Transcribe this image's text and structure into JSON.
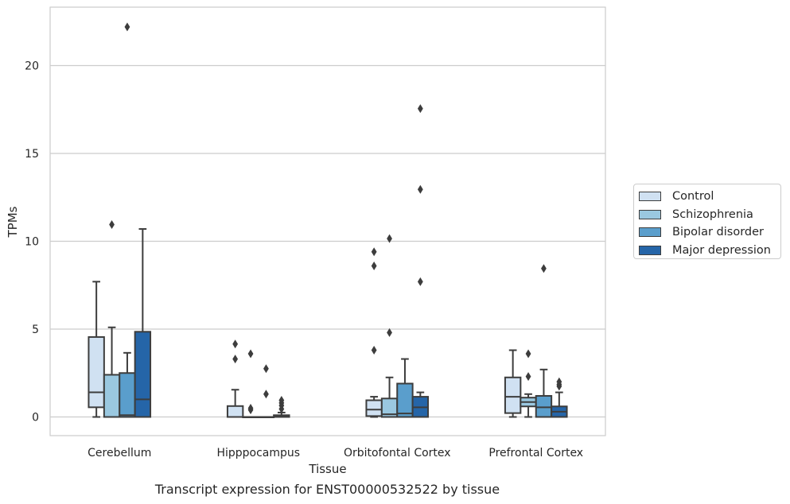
{
  "chart_data": {
    "type": "boxplot",
    "title": "",
    "caption": "Transcript expression for ENST00000532522 by tissue",
    "xlabel": "Tissue",
    "ylabel": "TPMs",
    "ylim": [
      -1.1,
      23.2
    ],
    "yticks": [
      0,
      5,
      10,
      15,
      20
    ],
    "ytick_labels": [
      "0",
      "5",
      "10",
      "15",
      "20"
    ],
    "grid": "horizontal",
    "legend_position": "right",
    "categories": [
      "Cerebellum",
      "Hipppocampus",
      "Orbitofontal Cortex",
      "Prefrontal Cortex"
    ],
    "series": [
      {
        "name": "Control",
        "color": "#d0e1f2",
        "boxes": [
          {
            "q1": 0.55,
            "median": 1.4,
            "q3": 4.55,
            "whislo": 0.0,
            "whishi": 7.7,
            "fliers": []
          },
          {
            "q1": 0.0,
            "median": 0.0,
            "q3": 0.62,
            "whislo": 0.0,
            "whishi": 1.55,
            "fliers": [
              3.3,
              4.15
            ]
          },
          {
            "q1": 0.05,
            "median": 0.42,
            "q3": 0.95,
            "whislo": 0.0,
            "whishi": 1.15,
            "fliers": [
              3.8,
              8.6,
              9.4
            ]
          },
          {
            "q1": 0.22,
            "median": 1.15,
            "q3": 2.25,
            "whislo": 0.0,
            "whishi": 3.8,
            "fliers": []
          }
        ]
      },
      {
        "name": "Schizophrenia",
        "color": "#9ac8e0",
        "boxes": [
          {
            "q1": 0.0,
            "median": 0.0,
            "q3": 2.4,
            "whislo": 0.0,
            "whishi": 5.1,
            "fliers": [
              10.95
            ]
          },
          {
            "q1": 0.0,
            "median": 0.0,
            "q3": 0.0,
            "whislo": 0.0,
            "whishi": 0.0,
            "fliers": [
              0.4,
              0.5,
              3.6
            ]
          },
          {
            "q1": 0.0,
            "median": 0.15,
            "q3": 1.05,
            "whislo": 0.0,
            "whishi": 2.25,
            "fliers": [
              4.8,
              10.15
            ]
          },
          {
            "q1": 0.6,
            "median": 0.85,
            "q3": 1.1,
            "whislo": 0.0,
            "whishi": 1.3,
            "fliers": [
              2.3,
              3.6
            ]
          }
        ]
      },
      {
        "name": "Bipolar disorder",
        "color": "#5a9ecc",
        "boxes": [
          {
            "q1": 0.0,
            "median": 0.1,
            "q3": 2.5,
            "whislo": 0.0,
            "whishi": 3.65,
            "fliers": [
              22.2
            ]
          },
          {
            "q1": 0.0,
            "median": 0.0,
            "q3": 0.0,
            "whislo": 0.0,
            "whishi": 0.0,
            "fliers": [
              1.3,
              2.75
            ]
          },
          {
            "q1": 0.0,
            "median": 0.2,
            "q3": 1.9,
            "whislo": 0.0,
            "whishi": 3.3,
            "fliers": []
          },
          {
            "q1": 0.0,
            "median": 0.55,
            "q3": 1.2,
            "whislo": 0.0,
            "whishi": 2.7,
            "fliers": [
              8.45
            ]
          }
        ]
      },
      {
        "name": "Major depression",
        "color": "#2565a8",
        "boxes": [
          {
            "q1": 0.0,
            "median": 1.0,
            "q3": 4.85,
            "whislo": 0.0,
            "whishi": 10.7,
            "fliers": []
          },
          {
            "q1": 0.0,
            "median": 0.02,
            "q3": 0.1,
            "whislo": 0.0,
            "whishi": 0.25,
            "fliers": [
              0.45,
              0.65,
              0.8,
              0.95
            ]
          },
          {
            "q1": 0.0,
            "median": 0.55,
            "q3": 1.15,
            "whislo": 0.0,
            "whishi": 1.4,
            "fliers": [
              7.7,
              12.95,
              17.55
            ]
          },
          {
            "q1": 0.0,
            "median": 0.3,
            "q3": 0.6,
            "whislo": 0.0,
            "whishi": 1.4,
            "fliers": [
              1.75,
              1.85,
              2.0
            ]
          }
        ]
      }
    ]
  }
}
